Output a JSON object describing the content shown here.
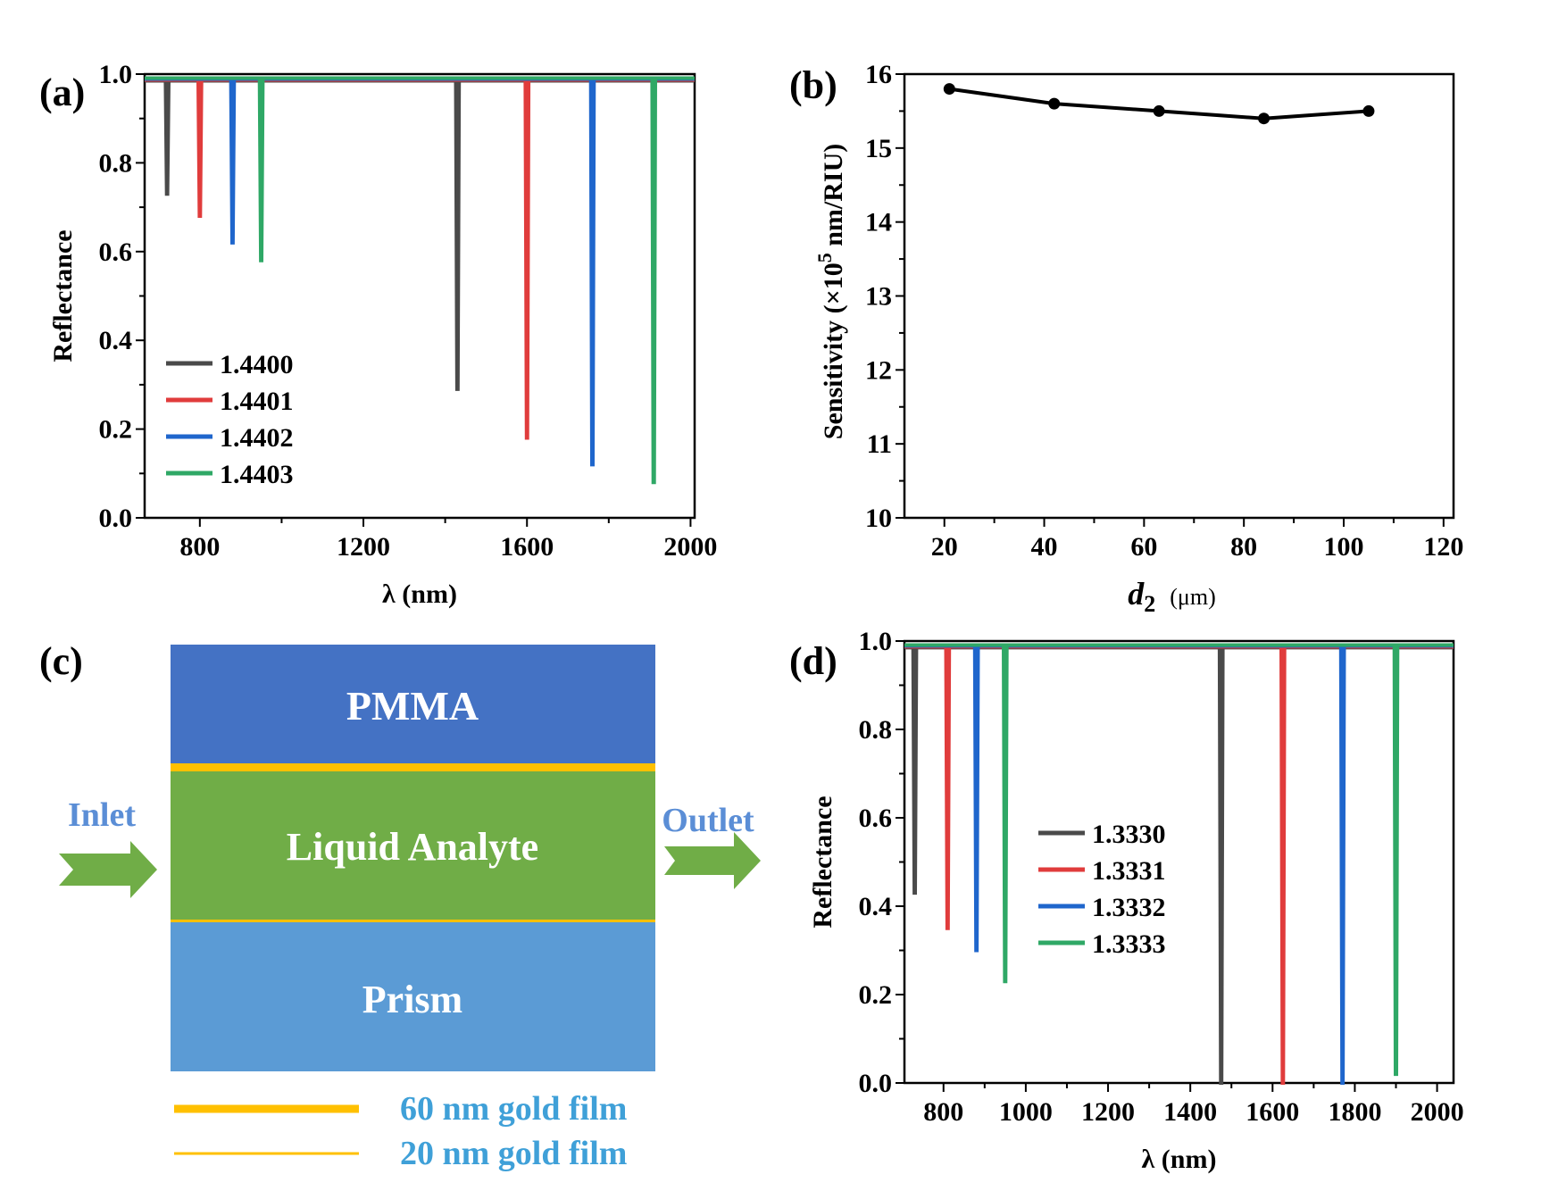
{
  "panels": {
    "a": "(a)",
    "b": "(b)",
    "c": "(c)",
    "d": "(d)"
  },
  "colors": {
    "s0": "#4a4a4a",
    "s1": "#e03c3c",
    "s2": "#1f66cc",
    "s3": "#2fa866",
    "pmma": "#4472c4",
    "analyte": "#70ad47",
    "prism": "#5b9bd5",
    "gold": "#ffc000",
    "label_blue": "#3fa0d8",
    "inout_blue": "#5b8ed6",
    "arrow_green": "#70ad47"
  },
  "diagram": {
    "pmma": "PMMA",
    "analyte": "Liquid Analyte",
    "prism": "Prism",
    "inlet": "Inlet",
    "outlet": "Outlet",
    "legend_thick": "60 nm gold film",
    "legend_thin": "20 nm gold film"
  },
  "chart_data": [
    {
      "id": "a",
      "type": "line",
      "xlabel": "λ (nm)",
      "ylabel": "Reflectance",
      "xlim": [
        665,
        2010
      ],
      "ylim": [
        0.0,
        1.0
      ],
      "xticks": [
        800,
        1200,
        1600,
        2000
      ],
      "yticks": [
        "0.0",
        "0.2",
        "0.4",
        "0.6",
        "0.8",
        "1.0"
      ],
      "legend_position": "lower-left",
      "series": [
        {
          "name": "1.4400",
          "dips": [
            [
              720,
              0.73
            ],
            [
              1430,
              0.29
            ]
          ]
        },
        {
          "name": "1.4401",
          "dips": [
            [
              800,
              0.68
            ],
            [
              1600,
              0.18
            ]
          ]
        },
        {
          "name": "1.4402",
          "dips": [
            [
              880,
              0.62
            ],
            [
              1760,
              0.12
            ]
          ]
        },
        {
          "name": "1.4403",
          "dips": [
            [
              950,
              0.58
            ],
            [
              1910,
              0.08
            ]
          ]
        }
      ]
    },
    {
      "id": "b",
      "type": "line",
      "xlabel_main": "d",
      "xlabel_sub": "2",
      "xlabel_unit": "(μm)",
      "ylabel_main": "Sensitivity",
      "ylabel_pre": "(×10",
      "ylabel_sup": "5",
      "ylabel_post": "nm/RIU)",
      "xlim": [
        12,
        122
      ],
      "ylim": [
        10,
        16
      ],
      "xticks": [
        20,
        40,
        60,
        80,
        100,
        120
      ],
      "yticks": [
        10,
        11,
        12,
        13,
        14,
        15,
        16
      ],
      "x": [
        21,
        42,
        63,
        84,
        105
      ],
      "y": [
        15.8,
        15.6,
        15.5,
        15.4,
        15.5
      ]
    },
    {
      "id": "d",
      "type": "line",
      "xlabel": "λ (nm)",
      "ylabel": "Reflectance",
      "xlim": [
        705,
        2040
      ],
      "ylim": [
        0.0,
        1.0
      ],
      "xticks": [
        800,
        1000,
        1200,
        1400,
        1600,
        1800,
        2000
      ],
      "yticks": [
        "0.0",
        "0.2",
        "0.4",
        "0.6",
        "0.8",
        "1.0"
      ],
      "legend_position": "center-left",
      "series": [
        {
          "name": "1.3330",
          "dips": [
            [
              730,
              0.43
            ],
            [
              1475,
              0.0
            ]
          ]
        },
        {
          "name": "1.3331",
          "dips": [
            [
              810,
              0.35
            ],
            [
              1625,
              0.0
            ]
          ]
        },
        {
          "name": "1.3332",
          "dips": [
            [
              880,
              0.3
            ],
            [
              1770,
              0.0
            ]
          ]
        },
        {
          "name": "1.3333",
          "dips": [
            [
              950,
              0.23
            ],
            [
              1900,
              0.02
            ]
          ]
        }
      ]
    }
  ]
}
